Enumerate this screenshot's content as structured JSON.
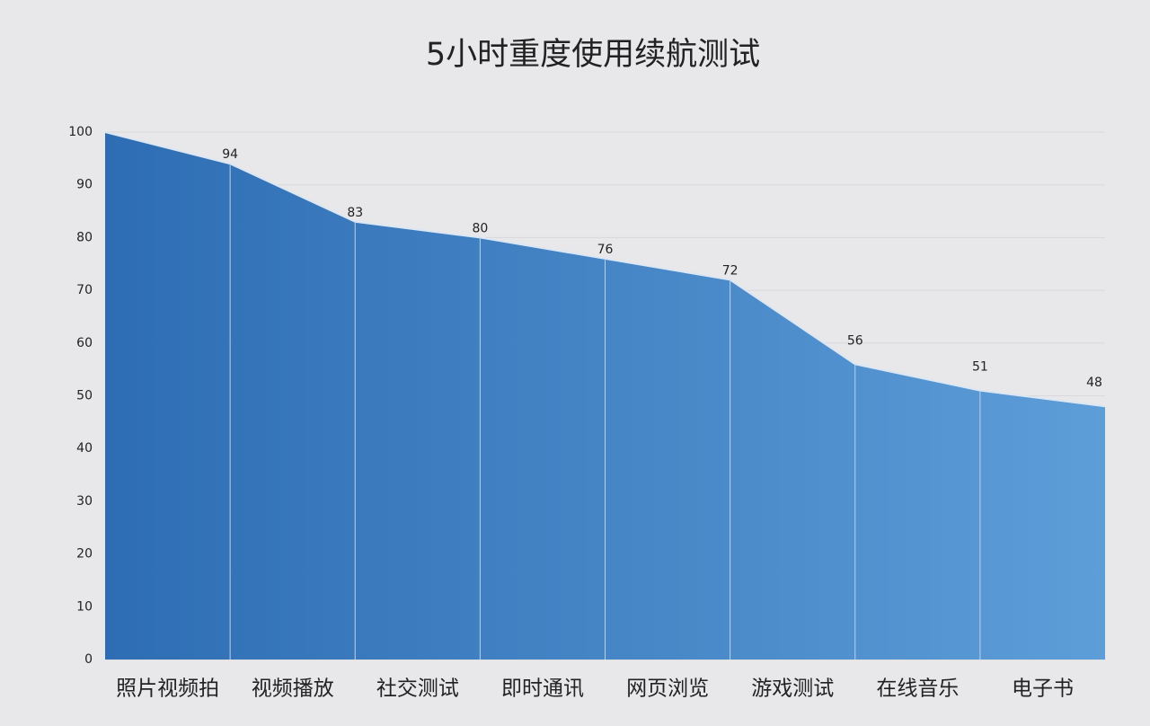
{
  "chart_data": {
    "type": "area",
    "title": "5小时重度使用续航测试",
    "categories": [
      "照片视频拍",
      "视频播放",
      "社交测试",
      "即时通讯",
      "网页浏览",
      "游戏测试",
      "在线音乐",
      "电子书",
      null
    ],
    "values": [
      100,
      94,
      83,
      80,
      76,
      72,
      56,
      51,
      48
    ],
    "color": "#4a8acb",
    "ylim": [
      0,
      100
    ],
    "yticks": [
      0,
      10,
      20,
      30,
      40,
      50,
      60,
      70,
      80,
      90,
      100
    ],
    "grid": true
  }
}
